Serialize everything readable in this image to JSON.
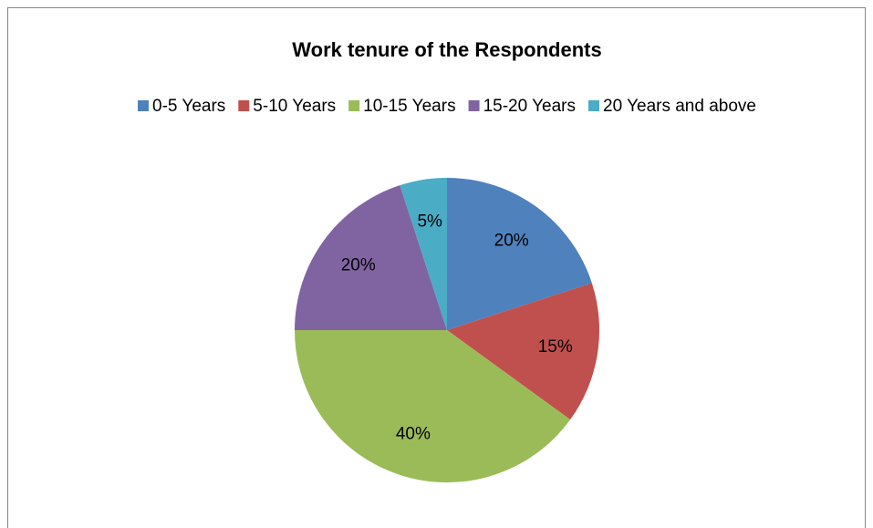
{
  "chart_data": {
    "type": "pie",
    "title": "Work tenure of the Respondents",
    "categories": [
      "0-5 Years",
      "5-10 Years",
      "10-15 Years",
      "15-20 Years",
      "20 Years and above"
    ],
    "values": [
      20,
      15,
      40,
      20,
      5
    ],
    "value_labels": [
      "20%",
      "15%",
      "40%",
      "20%",
      "5%"
    ],
    "colors": [
      "#4f81bd",
      "#c0504d",
      "#9bbb59",
      "#8064a2",
      "#4bacc6"
    ],
    "legend": "top"
  }
}
